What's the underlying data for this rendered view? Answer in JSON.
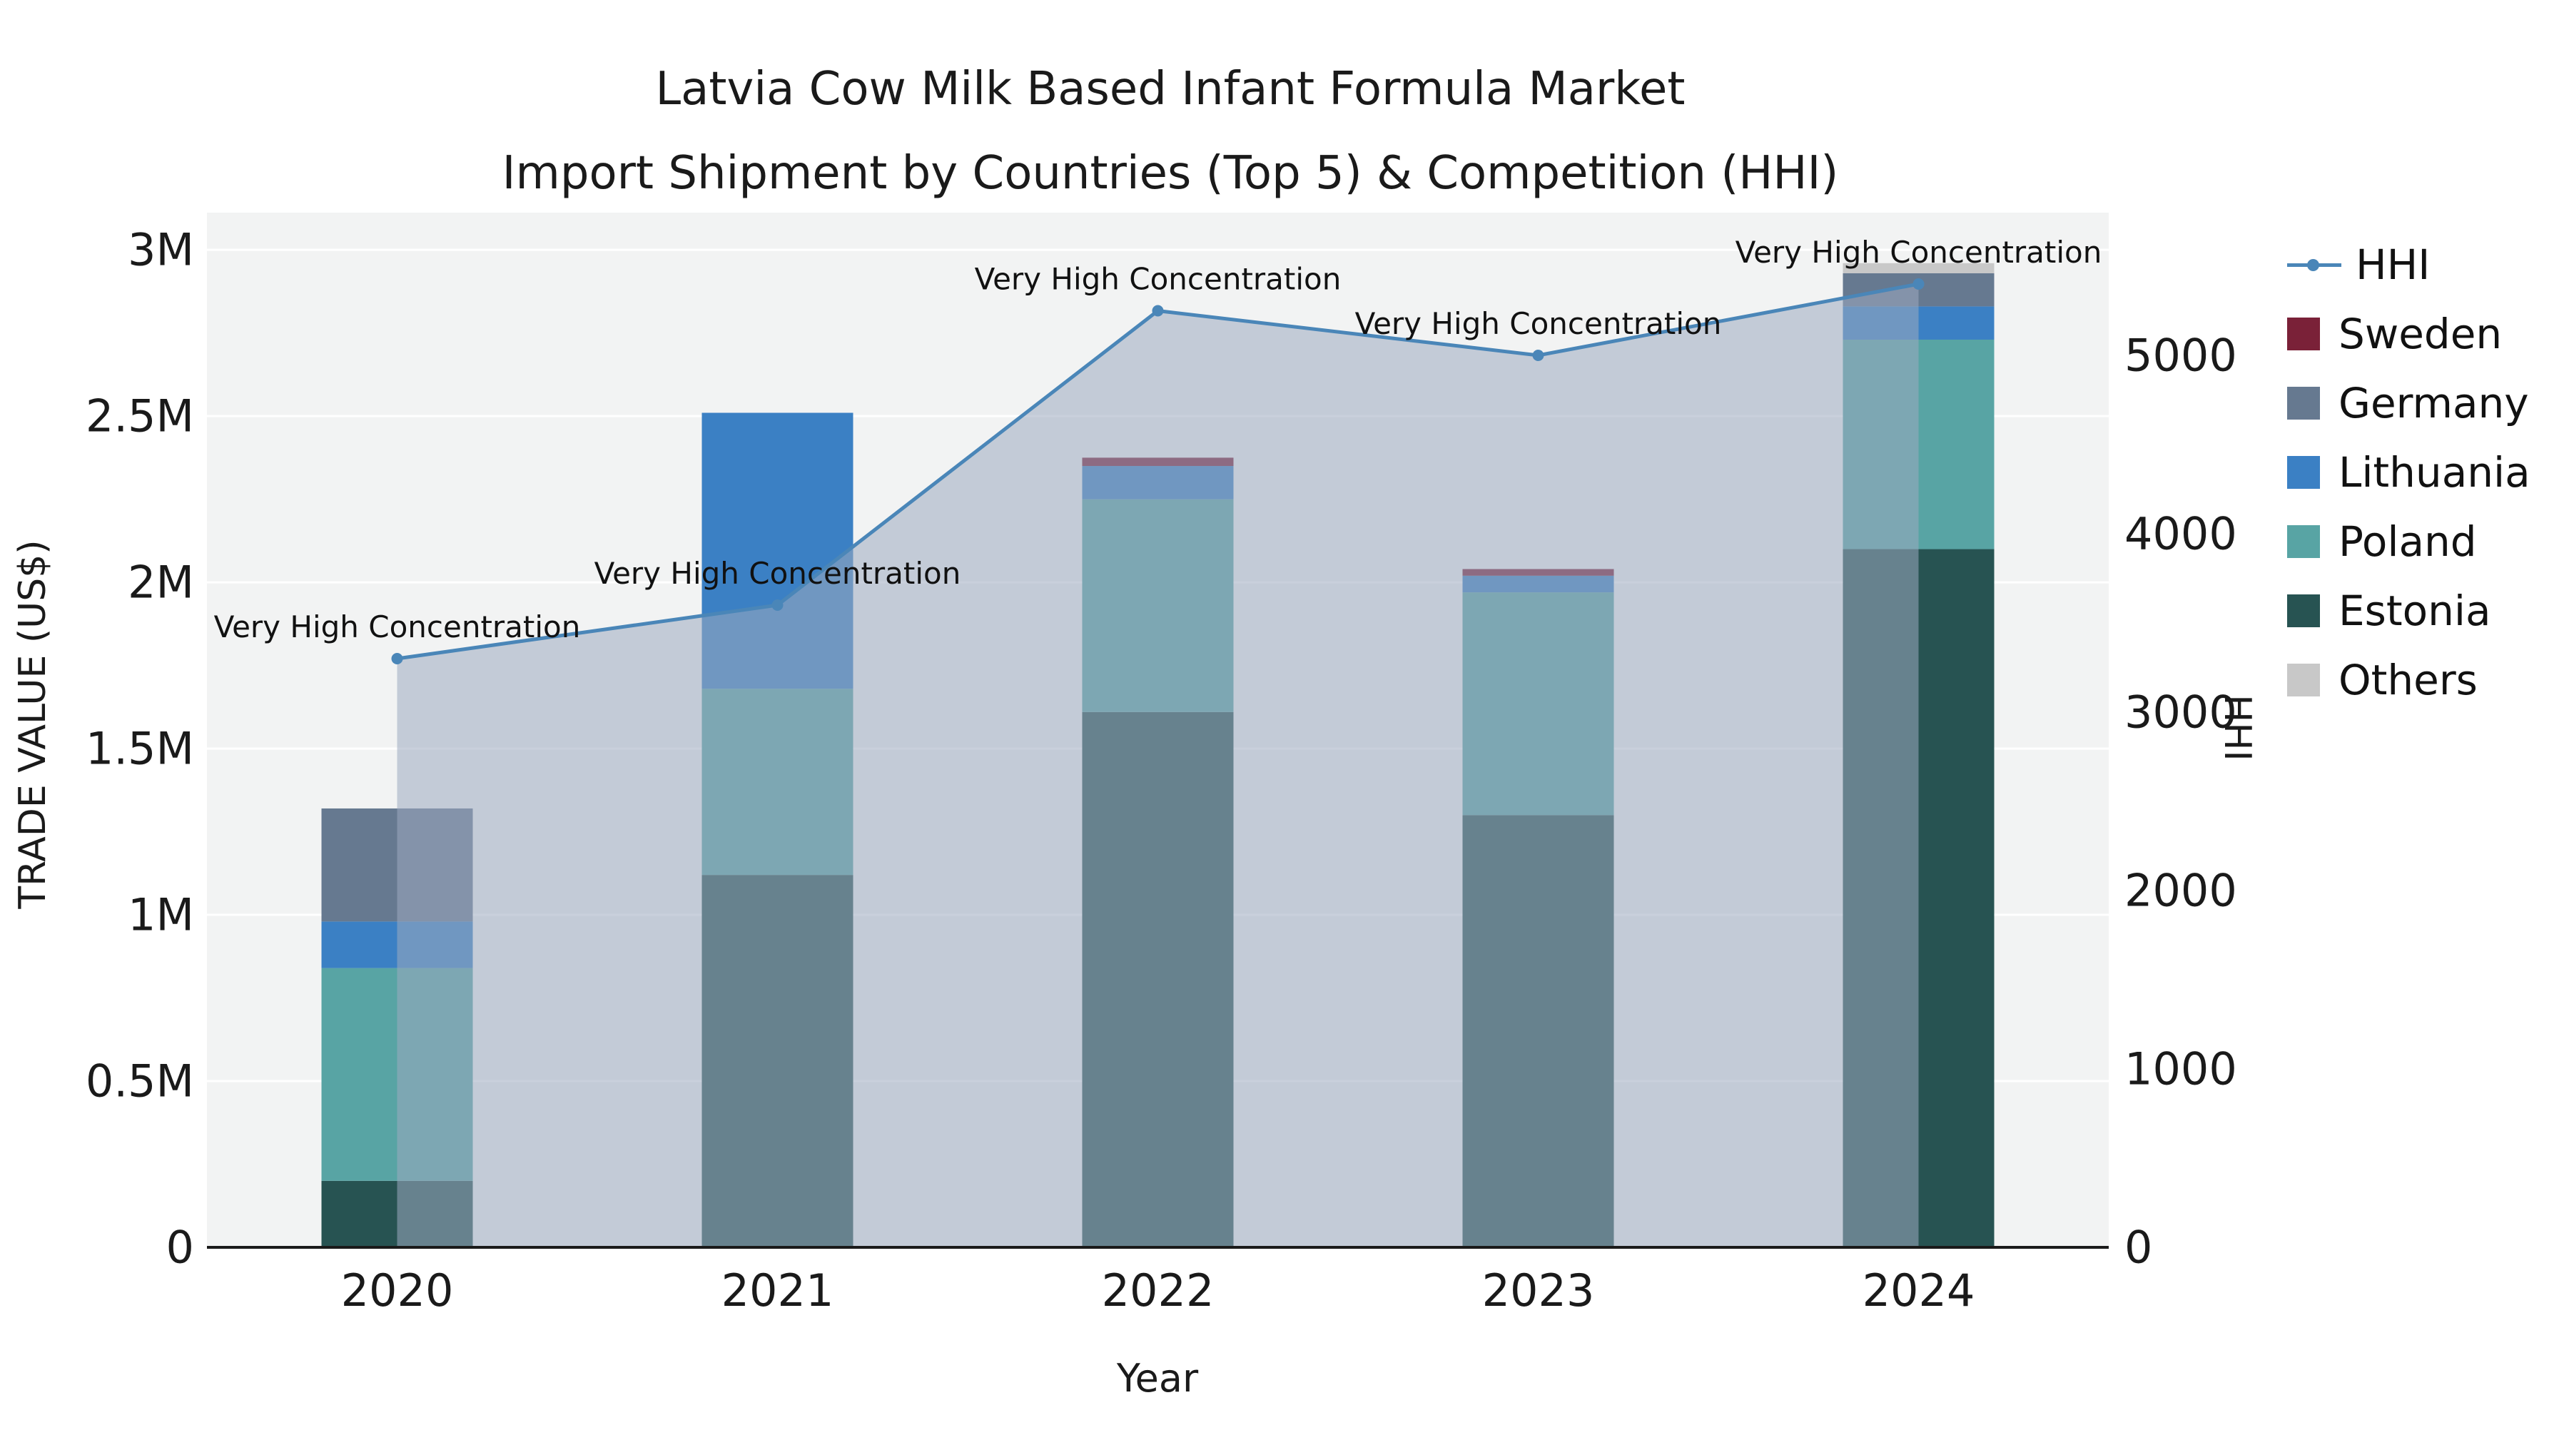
{
  "title": {
    "line1": "Latvia Cow Milk Based Infant Formula Market",
    "line2": "Import Shipment by Countries (Top 5) & Competition (HHI)"
  },
  "chart_data": {
    "type": "bar",
    "subtype": "stacked-bar-with-line-overlay",
    "categories": [
      "2020",
      "2021",
      "2022",
      "2023",
      "2024"
    ],
    "series": [
      {
        "name": "Estonia",
        "color": "#275352",
        "values": [
          200000,
          1120000,
          1610000,
          1300000,
          2100000
        ]
      },
      {
        "name": "Poland",
        "color": "#58a4a4",
        "values": [
          640000,
          560000,
          640000,
          670000,
          630000
        ]
      },
      {
        "name": "Lithuania",
        "color": "#3b80c4",
        "values": [
          140000,
          830000,
          100000,
          50000,
          100000
        ]
      },
      {
        "name": "Germany",
        "color": "#667990",
        "values": [
          340000,
          0,
          0,
          0,
          100000
        ]
      },
      {
        "name": "Sweden",
        "color": "#7a2138",
        "values": [
          0,
          0,
          25000,
          20000,
          0
        ]
      },
      {
        "name": "Others",
        "color": "#c8c8c8",
        "values": [
          0,
          0,
          0,
          0,
          30000
        ]
      }
    ],
    "line": {
      "name": "HHI",
      "color": "#4a86b8",
      "fill": "rgba(156,170,191,0.55)",
      "values": [
        3300,
        3600,
        5250,
        5000,
        5400
      ],
      "annotation": "Very High Concentration"
    },
    "left_axis": {
      "title": "TRADE VALUE (US$)",
      "tick_values": [
        0,
        500000,
        1000000,
        1500000,
        2000000,
        2500000,
        3000000
      ],
      "tick_labels": [
        "0",
        "0.5M",
        "1M",
        "1.5M",
        "2M",
        "2.5M",
        "3M"
      ],
      "range": [
        0,
        3112000
      ]
    },
    "right_axis": {
      "title": "HHI",
      "tick_values": [
        0,
        1000,
        2000,
        3000,
        4000,
        5000
      ],
      "tick_labels": [
        "0",
        "1000",
        "2000",
        "3000",
        "4000",
        "5000"
      ],
      "range": [
        0,
        5800
      ]
    },
    "x_axis": {
      "title": "Year"
    },
    "legend": [
      {
        "label": "HHI",
        "type": "line",
        "color": "#4a86b8"
      },
      {
        "label": "Sweden",
        "type": "swatch",
        "color": "#7a2138"
      },
      {
        "label": "Germany",
        "type": "swatch",
        "color": "#667990"
      },
      {
        "label": "Lithuania",
        "type": "swatch",
        "color": "#3b80c4"
      },
      {
        "label": "Poland",
        "type": "swatch",
        "color": "#58a4a4"
      },
      {
        "label": "Estonia",
        "type": "swatch",
        "color": "#275352"
      },
      {
        "label": "Others",
        "type": "swatch",
        "color": "#c8c8c8"
      }
    ],
    "grid": {
      "show": true,
      "color": "#ffffff"
    }
  }
}
